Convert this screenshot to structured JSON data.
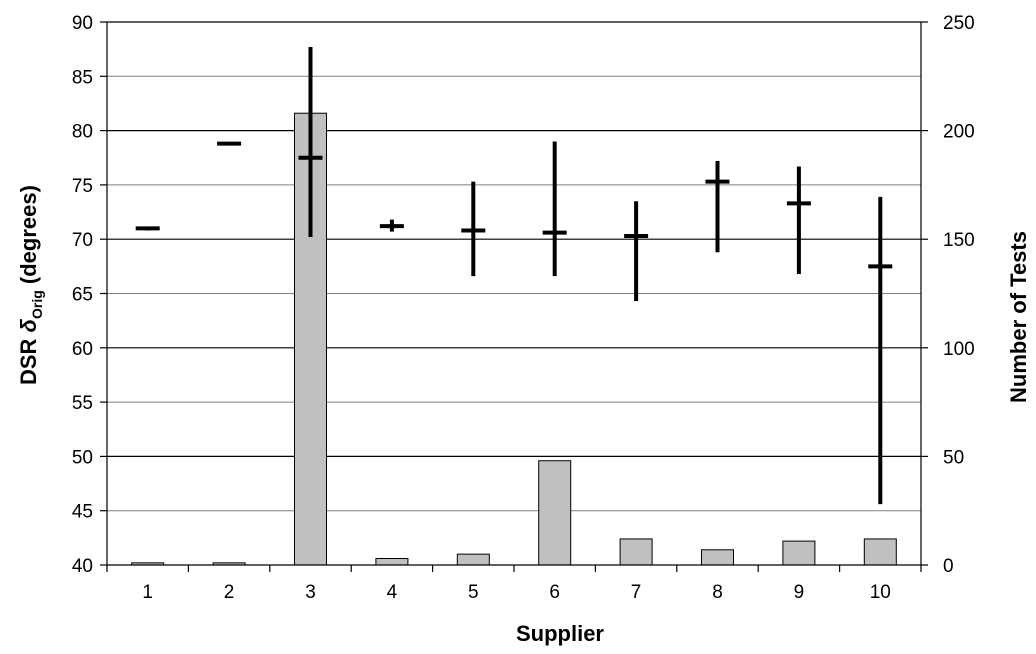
{
  "chart_data": {
    "type": "bar",
    "xlabel": "Supplier",
    "ylabel_left": {
      "prefix": "DSR ",
      "symbol": "δ",
      "subscript": "Orig",
      "suffix": " (degrees)"
    },
    "ylabel_right": "Number of Tests",
    "ylim_left": [
      40,
      90
    ],
    "yticks_left": [
      40,
      45,
      50,
      55,
      60,
      65,
      70,
      75,
      80,
      85,
      90
    ],
    "ylim_right": [
      0,
      250
    ],
    "yticks_right": [
      0,
      50,
      100,
      150,
      200,
      250
    ],
    "categories": [
      "1",
      "2",
      "3",
      "4",
      "5",
      "6",
      "7",
      "8",
      "9",
      "10"
    ],
    "grid": true,
    "legend": "none",
    "series": [
      {
        "kind": "bar",
        "axis": "right",
        "color": "#c0c0c0",
        "values": [
          1,
          1,
          208,
          3,
          5,
          48,
          12,
          7,
          11,
          12
        ]
      },
      {
        "kind": "range",
        "axis": "left",
        "color": "#000000",
        "mean": [
          71.0,
          78.8,
          77.5,
          71.2,
          70.8,
          70.6,
          70.3,
          75.3,
          73.3,
          67.5
        ],
        "min": [
          70.8,
          78.8,
          70.2,
          70.7,
          66.6,
          66.6,
          64.3,
          68.8,
          66.8,
          45.6
        ],
        "max": [
          71.1,
          78.9,
          87.7,
          71.8,
          75.3,
          79.0,
          73.5,
          77.2,
          76.7,
          73.9
        ]
      }
    ]
  }
}
